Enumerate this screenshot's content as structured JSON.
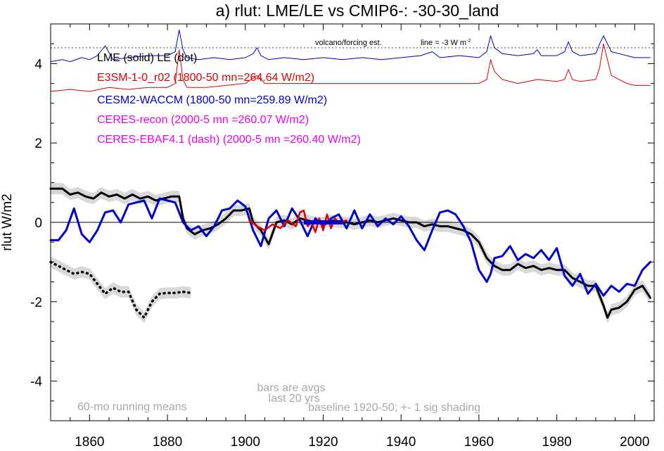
{
  "chart_data": {
    "type": "line",
    "title": "a) rlut: LME/LE vs CMIP6-: -30-30_land",
    "ylabel": "rlut W/m2",
    "xlabel": "",
    "xlim": [
      1850,
      2005
    ],
    "ylim": [
      -5,
      5
    ],
    "xticks": [
      1860,
      1880,
      1900,
      1920,
      1940,
      1960,
      1980,
      2000
    ],
    "yticks": [
      -4,
      -2,
      0,
      2,
      4
    ],
    "zero_line": 0,
    "dashed_reference_y": 4.4,
    "legend": [
      {
        "text": "LME (solid)   LE (dot)",
        "color": "#000000"
      },
      {
        "text": "E3SM-1-0_r02 (1800-50 mn=264.64 W/m2)",
        "color": "#e00000"
      },
      {
        "text": "CESM2-WACCM (1800-50 mn=259.89 W/m2)",
        "color": "#0000cc"
      },
      {
        "text": "CERES-recon (2000-5 mn =260.07 W/m2)",
        "color": "#ee00ee"
      },
      {
        "text": "CERES-EBAF4.1 (dash) (2000-5 mn =260.40 W/m2)",
        "color": "#ee00ee"
      }
    ],
    "annotations": {
      "volcano": "volcano/forcing est.",
      "line_note": "line = -3 W m",
      "line_note_sup": "-2",
      "bars_line1": "bars are avgs",
      "bars_line2": "last 20 yrs",
      "running_means": "60-mo running means",
      "baseline": "baseline 1920-50; +- 1 sig shading"
    },
    "series": [
      {
        "name": "LME (solid)",
        "color": "#000000",
        "style": "solid",
        "width": 3,
        "shaded": true,
        "x": [
          1850,
          1853,
          1855,
          1857,
          1859,
          1861,
          1863,
          1865,
          1867,
          1869,
          1871,
          1873,
          1875,
          1877,
          1879,
          1881,
          1883,
          1884,
          1885,
          1887,
          1889,
          1891,
          1893,
          1895,
          1897,
          1899,
          1901,
          1902,
          1904,
          1906,
          1908,
          1910,
          1912,
          1914,
          1916,
          1918,
          1920,
          1922,
          1924,
          1926,
          1928,
          1930,
          1932,
          1934,
          1936,
          1938,
          1940,
          1942,
          1944,
          1946,
          1948,
          1950,
          1952,
          1954,
          1956,
          1958,
          1960,
          1962,
          1964,
          1966,
          1968,
          1970,
          1972,
          1974,
          1976,
          1978,
          1980,
          1982,
          1984,
          1986,
          1988,
          1990,
          1992,
          1993,
          1994,
          1996,
          1998,
          2000,
          2002,
          2004
        ],
        "y": [
          0.85,
          0.85,
          0.7,
          0.75,
          0.65,
          0.6,
          0.75,
          0.65,
          0.7,
          0.6,
          0.7,
          0.6,
          0.65,
          0.55,
          0.6,
          0.65,
          0.65,
          0.1,
          -0.15,
          -0.3,
          -0.2,
          -0.15,
          -0.05,
          0.1,
          0.3,
          0.3,
          0.35,
          0.0,
          -0.2,
          -0.55,
          0.0,
          0.05,
          -0.05,
          0.1,
          0.05,
          0.0,
          0.0,
          0.05,
          0.0,
          0.0,
          -0.05,
          0.0,
          0.05,
          0.0,
          0.05,
          0.1,
          0.05,
          0.0,
          0.0,
          -0.1,
          -0.05,
          -0.1,
          -0.1,
          -0.15,
          -0.2,
          -0.3,
          -0.5,
          -0.9,
          -1.1,
          -1.2,
          -1.2,
          -1.05,
          -1.15,
          -1.1,
          -1.2,
          -1.15,
          -1.2,
          -1.2,
          -1.4,
          -1.5,
          -1.6,
          -1.6,
          -2.1,
          -2.4,
          -2.2,
          -2.15,
          -2.0,
          -1.7,
          -1.6,
          -1.9
        ]
      },
      {
        "name": "LE (dot)",
        "color": "#000000",
        "style": "dotted",
        "width": 3,
        "shaded": true,
        "x": [
          1850,
          1852,
          1854,
          1856,
          1858,
          1860,
          1862,
          1864,
          1866,
          1868,
          1870,
          1872,
          1874,
          1876,
          1878,
          1880,
          1882,
          1884,
          1886
        ],
        "y": [
          -1.0,
          -1.1,
          -1.2,
          -1.3,
          -1.25,
          -1.3,
          -1.55,
          -1.8,
          -1.65,
          -1.75,
          -1.75,
          -2.2,
          -2.4,
          -2.0,
          -1.8,
          -1.78,
          -1.78,
          -1.75,
          -1.78
        ]
      },
      {
        "name": "CESM2-WACCM",
        "color": "#0000cc",
        "style": "solid",
        "width": 3,
        "shaded": false,
        "x": [
          1850,
          1852,
          1854,
          1856,
          1858,
          1860,
          1862,
          1864,
          1866,
          1868,
          1870,
          1872,
          1874,
          1876,
          1878,
          1880,
          1882,
          1884,
          1886,
          1888,
          1890,
          1892,
          1894,
          1896,
          1898,
          1900,
          1902,
          1904,
          1906,
          1908,
          1910,
          1912,
          1914,
          1916,
          1918,
          1920,
          1922,
          1924,
          1926,
          1928,
          1930,
          1932,
          1934,
          1936,
          1938,
          1940,
          1942,
          1944,
          1946,
          1948,
          1950,
          1952,
          1954,
          1956,
          1958,
          1960,
          1962,
          1963,
          1964,
          1966,
          1968,
          1970,
          1972,
          1974,
          1976,
          1978,
          1980,
          1982,
          1984,
          1986,
          1988,
          1990,
          1992,
          1994,
          1996,
          1998,
          2000,
          2002,
          2004
        ],
        "y": [
          -0.45,
          -0.45,
          -0.2,
          0.35,
          -0.3,
          -0.5,
          -0.2,
          0.25,
          0.3,
          0.0,
          0.45,
          0.5,
          0.55,
          0.1,
          0.6,
          0.55,
          0.5,
          0.0,
          -0.2,
          -0.1,
          -0.35,
          -0.1,
          0.3,
          0.35,
          0.55,
          0.4,
          -0.2,
          -0.6,
          0.1,
          0.3,
          -0.1,
          0.35,
          0.05,
          -0.35,
          0.1,
          -0.1,
          0.1,
          0.2,
          -0.15,
          0.3,
          -0.15,
          0.2,
          -0.1,
          0.1,
          -0.05,
          0.15,
          -0.1,
          -0.45,
          -0.7,
          -0.2,
          0.25,
          0.3,
          0.2,
          -0.1,
          -0.5,
          -1.2,
          -1.5,
          -1.3,
          -0.9,
          -0.85,
          -0.6,
          -0.95,
          -0.8,
          -0.9,
          -0.7,
          -0.95,
          -0.65,
          -1.35,
          -1.6,
          -1.3,
          -1.8,
          -1.55,
          -1.85,
          -1.6,
          -1.75,
          -1.55,
          -1.6,
          -1.2,
          -1.0
        ]
      },
      {
        "name": "E3SM-1-0_r02",
        "color": "#e00000",
        "style": "solid",
        "width": 2.5,
        "shaded": false,
        "x": [
          1901,
          1903,
          1905,
          1907,
          1909,
          1911,
          1913,
          1914,
          1915,
          1916,
          1917,
          1918,
          1919,
          1920,
          1921,
          1922,
          1923,
          1924,
          1926
        ],
        "y": [
          0.05,
          -0.1,
          -0.2,
          -0.05,
          -0.15,
          0.05,
          -0.1,
          0.25,
          0.3,
          -0.1,
          0.0,
          -0.25,
          0.1,
          -0.2,
          0.2,
          -0.15,
          0.1,
          0.0,
          0.05
        ]
      },
      {
        "name": "CESM2-WACCM volcano/forcing est.",
        "color": "#0000cc",
        "style": "solid",
        "width": 1,
        "shaded": false,
        "x": [
          1850,
          1853,
          1855,
          1858,
          1860,
          1862,
          1864,
          1866,
          1870,
          1875,
          1880,
          1882,
          1883,
          1884,
          1885,
          1888,
          1892,
          1896,
          1900,
          1902,
          1903,
          1904,
          1906,
          1910,
          1915,
          1920,
          1925,
          1930,
          1935,
          1940,
          1945,
          1948,
          1950,
          1955,
          1960,
          1962,
          1963,
          1964,
          1966,
          1970,
          1974,
          1975,
          1976,
          1980,
          1982,
          1983,
          1984,
          1986,
          1990,
          1991,
          1992,
          1994,
          1998,
          2000,
          2004
        ],
        "y": [
          4.05,
          4.1,
          4.05,
          4.15,
          4.1,
          4.2,
          4.45,
          4.1,
          4.15,
          4.2,
          4.2,
          4.3,
          4.85,
          4.35,
          4.15,
          4.1,
          4.15,
          4.1,
          4.15,
          4.25,
          4.4,
          4.2,
          4.1,
          4.15,
          4.1,
          4.15,
          4.1,
          4.15,
          4.1,
          4.15,
          4.2,
          4.3,
          4.15,
          4.2,
          4.15,
          4.3,
          4.7,
          4.4,
          4.25,
          4.2,
          4.25,
          4.35,
          4.2,
          4.2,
          4.3,
          4.55,
          4.3,
          4.2,
          4.25,
          4.5,
          4.7,
          4.3,
          4.2,
          4.15,
          4.15
        ]
      },
      {
        "name": "E3SM-1-0_r02 volcano/forcing est.",
        "color": "#e00000",
        "style": "solid",
        "width": 1,
        "shaded": false,
        "x": [
          1850,
          1855,
          1860,
          1865,
          1870,
          1875,
          1880,
          1882,
          1883,
          1884,
          1885,
          1890,
          1895,
          1900,
          1903,
          1905,
          1910,
          1920,
          1930,
          1940,
          1950,
          1960,
          1962,
          1963,
          1964,
          1966,
          1970,
          1975,
          1980,
          1982,
          1983,
          1984,
          1986,
          1990,
          1991,
          1992,
          1994,
          1998,
          2000,
          2004
        ],
        "y": [
          3.3,
          3.35,
          3.3,
          3.4,
          3.35,
          3.4,
          3.4,
          3.5,
          4.35,
          3.6,
          3.4,
          3.4,
          3.45,
          3.5,
          3.7,
          3.5,
          3.5,
          3.5,
          3.5,
          3.5,
          3.5,
          3.5,
          3.6,
          4.1,
          3.8,
          3.6,
          3.5,
          3.6,
          3.55,
          3.6,
          3.85,
          3.6,
          3.55,
          3.6,
          3.9,
          4.5,
          3.7,
          3.5,
          3.45,
          3.45
        ]
      }
    ],
    "bars": [
      {
        "name": "CESM2-WACCM last 20 yrs",
        "color": "#0000cc",
        "x0": 1915,
        "x1": 1925,
        "y": 0.0
      }
    ]
  }
}
